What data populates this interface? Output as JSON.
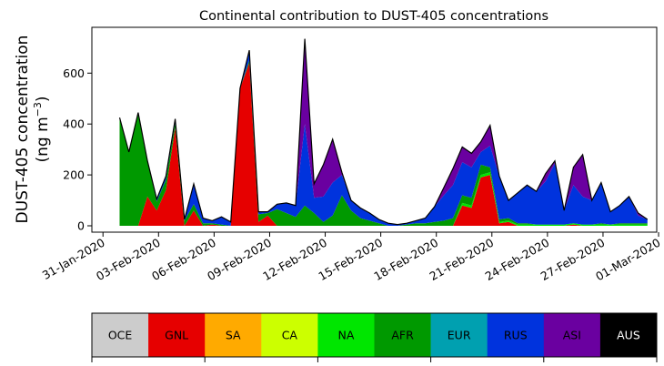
{
  "chart_data": {
    "type": "area",
    "stacked": true,
    "title": "Continental contribution to DUST-405 concentrations",
    "ylabel_line1": "DUST-405 concentration",
    "ylabel_line2_prefix": "(ng m",
    "ylabel_line2_sup": "−3",
    "ylabel_line2_suffix": ")",
    "xlabel": "",
    "ylim": [
      -25,
      780
    ],
    "yticks": [
      0,
      200,
      400,
      600
    ],
    "xlim": [
      -0.6,
      29.9
    ],
    "xticks": [
      {
        "day": 0,
        "label": "31-Jan-2020"
      },
      {
        "day": 3,
        "label": "03-Feb-2020"
      },
      {
        "day": 6,
        "label": "06-Feb-2020"
      },
      {
        "day": 9,
        "label": "09-Feb-2020"
      },
      {
        "day": 12,
        "label": "12-Feb-2020"
      },
      {
        "day": 15,
        "label": "15-Feb-2020"
      },
      {
        "day": 18,
        "label": "18-Feb-2020"
      },
      {
        "day": 21,
        "label": "21-Feb-2020"
      },
      {
        "day": 24,
        "label": "24-Feb-2020"
      },
      {
        "day": 27,
        "label": "27-Feb-2020"
      },
      {
        "day": 30,
        "label": "01-Mar-2020"
      }
    ],
    "x_days_from_31_Jan_2020": [
      0.9,
      1.4,
      1.9,
      2.4,
      2.9,
      3.4,
      3.9,
      4.4,
      4.9,
      5.4,
      5.9,
      6.4,
      6.9,
      7.4,
      7.9,
      8.4,
      8.9,
      9.4,
      9.9,
      10.4,
      10.9,
      11.4,
      11.9,
      12.4,
      12.9,
      13.4,
      13.9,
      14.4,
      14.9,
      15.4,
      15.9,
      16.4,
      16.9,
      17.4,
      17.9,
      18.4,
      18.9,
      19.4,
      19.9,
      20.4,
      20.9,
      21.4,
      21.9,
      22.4,
      22.9,
      23.4,
      23.9,
      24.4,
      24.9,
      25.4,
      25.9,
      26.4,
      26.9,
      27.4,
      27.9,
      28.4,
      28.9,
      29.4
    ],
    "series": [
      {
        "name": "OCE",
        "color": "#cccccc",
        "values": [
          0,
          0,
          0,
          0,
          0,
          0,
          0,
          0,
          0,
          0,
          0,
          0,
          0,
          0,
          0,
          0,
          0,
          0,
          0,
          0,
          0,
          0,
          0,
          0,
          0,
          0,
          0,
          0,
          0,
          0,
          0,
          0,
          0,
          0,
          0,
          0,
          0,
          0,
          0,
          0,
          0,
          0,
          0,
          0,
          0,
          0,
          0,
          0,
          0,
          0,
          0,
          0,
          0,
          0,
          0,
          0,
          0,
          0
        ]
      },
      {
        "name": "GNL",
        "color": "#e60000",
        "values": [
          0,
          0,
          0,
          115,
          60,
          140,
          385,
          0,
          60,
          0,
          5,
          0,
          0,
          540,
          640,
          15,
          40,
          0,
          0,
          0,
          0,
          0,
          0,
          0,
          0,
          0,
          0,
          0,
          0,
          0,
          0,
          0,
          0,
          0,
          0,
          0,
          0,
          80,
          70,
          190,
          200,
          10,
          15,
          0,
          0,
          0,
          0,
          0,
          0,
          5,
          0,
          0,
          0,
          0,
          0,
          0,
          0,
          0
        ]
      },
      {
        "name": "SA",
        "color": "#ffaa00",
        "values": [
          0,
          0,
          0,
          0,
          0,
          0,
          0,
          0,
          0,
          0,
          0,
          0,
          0,
          0,
          0,
          0,
          0,
          0,
          0,
          0,
          0,
          0,
          0,
          0,
          0,
          0,
          0,
          0,
          0,
          0,
          0,
          0,
          0,
          0,
          0,
          0,
          0,
          0,
          0,
          0,
          0,
          0,
          0,
          0,
          0,
          0,
          0,
          0,
          0,
          0,
          0,
          0,
          0,
          0,
          0,
          0,
          0,
          0
        ]
      },
      {
        "name": "CA",
        "color": "#ccff00",
        "values": [
          0,
          0,
          0,
          0,
          0,
          0,
          0,
          0,
          0,
          0,
          0,
          0,
          0,
          0,
          0,
          0,
          0,
          0,
          0,
          0,
          0,
          0,
          0,
          0,
          0,
          0,
          0,
          0,
          0,
          0,
          0,
          0,
          0,
          0,
          0,
          0,
          0,
          0,
          0,
          0,
          0,
          0,
          0,
          0,
          0,
          0,
          0,
          0,
          0,
          0,
          0,
          0,
          0,
          0,
          0,
          0,
          0,
          0
        ]
      },
      {
        "name": "NA",
        "color": "#00e600",
        "values": [
          0,
          0,
          0,
          0,
          0,
          0,
          0,
          0,
          0,
          0,
          0,
          0,
          0,
          0,
          0,
          0,
          0,
          0,
          0,
          0,
          0,
          0,
          0,
          0,
          0,
          0,
          0,
          0,
          0,
          0,
          0,
          0,
          0,
          0,
          0,
          0,
          0,
          10,
          10,
          10,
          10,
          5,
          5,
          5,
          5,
          5,
          5,
          5,
          5,
          5,
          5,
          5,
          5,
          5,
          5,
          5,
          5,
          5
        ]
      },
      {
        "name": "AFR",
        "color": "#009900",
        "values": [
          425,
          290,
          445,
          140,
          35,
          40,
          20,
          20,
          25,
          10,
          5,
          5,
          0,
          0,
          10,
          30,
          10,
          65,
          50,
          35,
          80,
          50,
          15,
          40,
          120,
          60,
          30,
          20,
          10,
          0,
          0,
          5,
          10,
          10,
          15,
          20,
          30,
          30,
          30,
          40,
          20,
          10,
          10,
          5,
          5,
          0,
          0,
          0,
          0,
          0,
          0,
          0,
          5,
          0,
          5,
          5,
          5,
          5
        ]
      },
      {
        "name": "EUR",
        "color": "#00a0b0",
        "values": [
          0,
          0,
          0,
          0,
          0,
          0,
          0,
          0,
          0,
          0,
          0,
          0,
          0,
          0,
          0,
          0,
          0,
          0,
          0,
          0,
          0,
          0,
          0,
          0,
          0,
          0,
          0,
          0,
          0,
          0,
          0,
          0,
          0,
          0,
          0,
          0,
          0,
          0,
          0,
          0,
          0,
          0,
          0,
          0,
          0,
          0,
          0,
          0,
          0,
          0,
          0,
          0,
          0,
          0,
          0,
          0,
          0,
          0
        ]
      },
      {
        "name": "RUS",
        "color": "#0033dd",
        "values": [
          0,
          0,
          0,
          0,
          10,
          15,
          15,
          5,
          80,
          20,
          10,
          30,
          15,
          0,
          40,
          10,
          5,
          20,
          40,
          45,
          320,
          60,
          100,
          130,
          80,
          40,
          40,
          30,
          15,
          10,
          5,
          5,
          10,
          20,
          60,
          100,
          130,
          130,
          120,
          50,
          85,
          170,
          70,
          120,
          150,
          130,
          170,
          240,
          55,
          150,
          110,
          95,
          160,
          50,
          70,
          105,
          30,
          15
        ]
      },
      {
        "name": "ASI",
        "color": "#6a00a0",
        "values": [
          0,
          0,
          0,
          0,
          0,
          0,
          0,
          0,
          0,
          0,
          0,
          0,
          0,
          0,
          0,
          0,
          0,
          0,
          0,
          0,
          335,
          55,
          125,
          170,
          10,
          0,
          0,
          0,
          0,
          0,
          0,
          0,
          0,
          0,
          0,
          30,
          65,
          60,
          55,
          40,
          80,
          0,
          0,
          0,
          0,
          0,
          30,
          10,
          0,
          70,
          165,
          0,
          0,
          0,
          0,
          0,
          10,
          0
        ]
      },
      {
        "name": "AUS",
        "color": "#000000",
        "values": [
          0,
          0,
          0,
          0,
          0,
          0,
          0,
          0,
          0,
          0,
          0,
          0,
          0,
          0,
          0,
          0,
          0,
          0,
          0,
          0,
          0,
          0,
          0,
          0,
          0,
          0,
          0,
          0,
          0,
          0,
          0,
          0,
          0,
          0,
          0,
          0,
          0,
          0,
          0,
          0,
          0,
          0,
          0,
          0,
          0,
          0,
          0,
          0,
          0,
          0,
          0,
          0,
          0,
          0,
          0,
          0,
          0,
          0
        ]
      }
    ],
    "colorbar": {
      "labels": [
        "OCE",
        "GNL",
        "SA",
        "CA",
        "NA",
        "AFR",
        "EUR",
        "RUS",
        "ASI",
        "AUS"
      ],
      "colors": [
        "#cccccc",
        "#e60000",
        "#ffaa00",
        "#ccff00",
        "#00e600",
        "#009900",
        "#00a0b0",
        "#0033dd",
        "#6a00a0",
        "#000000"
      ],
      "text_colors": [
        "#000000",
        "#000000",
        "#000000",
        "#000000",
        "#000000",
        "#000000",
        "#000000",
        "#000000",
        "#000000",
        "#ffffff"
      ]
    },
    "grid": false,
    "legend": "colorbar-bottom"
  }
}
